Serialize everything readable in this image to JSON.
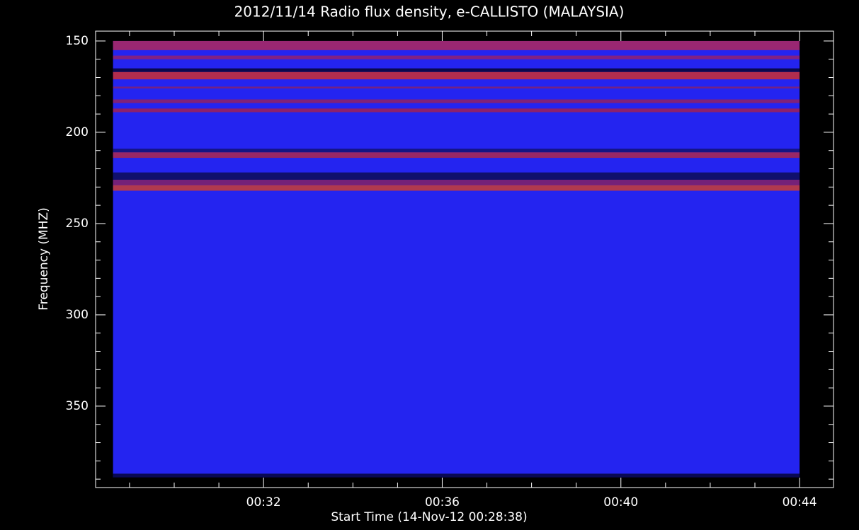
{
  "chart_data": {
    "type": "spectrogram",
    "title": "2012/11/14  Radio flux density, e-CALLISTO (MALAYSIA)",
    "x_label": "Start Time (14-Nov-12 00:28:38)",
    "y_label": "Frequency (MHZ)",
    "xlim": [
      28.24,
      44.76
    ],
    "xticks": [
      {
        "value": 32,
        "label": "00:32"
      },
      {
        "value": 36,
        "label": "00:36"
      },
      {
        "value": 40,
        "label": "00:40"
      },
      {
        "value": 44,
        "label": "00:44"
      }
    ],
    "xminor": [
      29,
      30,
      31,
      33,
      34,
      35,
      37,
      38,
      39,
      41,
      42,
      43
    ],
    "ylim": [
      144.6,
      394.6
    ],
    "yticks": [
      150,
      200,
      250,
      300,
      350
    ],
    "yminor": [
      160,
      170,
      180,
      190,
      210,
      220,
      230,
      240,
      260,
      270,
      280,
      290,
      310,
      320,
      330,
      340,
      360,
      370,
      380,
      390
    ],
    "y_inverted": true,
    "time_range": [
      28.63,
      44.0
    ],
    "freq_range": [
      150,
      389
    ],
    "color": "#2424f0",
    "bands": [
      {
        "freq": [
          150,
          155
        ],
        "color": "#c02848"
      },
      {
        "freq": [
          158,
          160
        ],
        "color": "#a02060"
      },
      {
        "freq": [
          165,
          167
        ],
        "color": "#000018"
      },
      {
        "freq": [
          167,
          171
        ],
        "color": "#e03018"
      },
      {
        "freq": [
          175,
          176
        ],
        "color": "#902060"
      },
      {
        "freq": [
          182,
          184
        ],
        "color": "#a02050"
      },
      {
        "freq": [
          187,
          189
        ],
        "color": "#b02040"
      },
      {
        "freq": [
          209,
          211
        ],
        "color": "#101060"
      },
      {
        "freq": [
          211,
          214
        ],
        "color": "#c02838"
      },
      {
        "freq": [
          222,
          226
        ],
        "color": "#0a0a40"
      },
      {
        "freq": [
          226,
          229
        ],
        "color": "#902050"
      },
      {
        "freq": [
          229,
          232
        ],
        "color": "#e04018"
      },
      {
        "freq": [
          387,
          389
        ],
        "color": "#000020"
      }
    ]
  }
}
